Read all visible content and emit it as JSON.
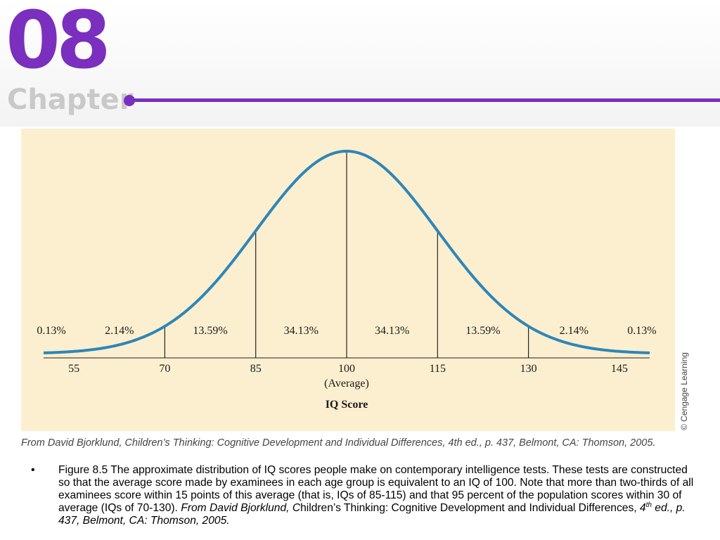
{
  "slide": {
    "chapter_number": "08",
    "chapter_label": "Chapter",
    "accent_color": "#7b2fbe"
  },
  "figure": {
    "background_color": "#fcefcf",
    "curve_color": "#2e86b8",
    "copyright": "© Cengage Learning",
    "source_line": "From David Bjorklund, Children’s Thinking: Cognitive Development and Individual Differences, 4th ed., p. 437, Belmont, CA: Thomson, 2005."
  },
  "chart_data": {
    "type": "area",
    "distribution": "normal",
    "mean": 100,
    "sd": 15,
    "xlim": [
      50,
      150
    ],
    "x_ticks": [
      55,
      70,
      85,
      100,
      115,
      130,
      145
    ],
    "x_tick_labels": [
      "55",
      "70",
      "85",
      "100",
      "115",
      "130",
      "145"
    ],
    "mean_sublabel": "(Average)",
    "xlabel": "IQ Score",
    "dividers": [
      70,
      85,
      100,
      115,
      130
    ],
    "segments": [
      {
        "from": 50,
        "to": 55,
        "percent": "0.13%"
      },
      {
        "from": 55,
        "to": 70,
        "percent": "2.14%"
      },
      {
        "from": 70,
        "to": 85,
        "percent": "13.59%"
      },
      {
        "from": 85,
        "to": 100,
        "percent": "34.13%"
      },
      {
        "from": 100,
        "to": 115,
        "percent": "34.13%"
      },
      {
        "from": 115,
        "to": 130,
        "percent": "13.59%"
      },
      {
        "from": 130,
        "to": 145,
        "percent": "2.14%"
      },
      {
        "from": 145,
        "to": 150,
        "percent": "0.13%"
      }
    ]
  },
  "caption": {
    "bullet": "•",
    "text_main": "Figure 8.5 The approximate distribution of IQ scores people make on contemporary intelligence tests. These tests are constructed so that the average score made by examinees in each age group is equivalent to an IQ of 100.  Note that more than two-thirds of all examinees score within 15 points of this average (that is, IQs of 85-115) and that 95 percent of the population scores within 30 of average (IQs of 70-130).",
    "text_source_italic_1": "From David Bjorklund, C",
    "text_source_normal": "hildren’s Thinking: Cognitive Development and Individual Differences, ",
    "text_source_italic_2": "4",
    "text_sup": "th",
    "text_source_italic_3": " ed., p. 437, Belmont, CA: Thomson, 2005."
  }
}
